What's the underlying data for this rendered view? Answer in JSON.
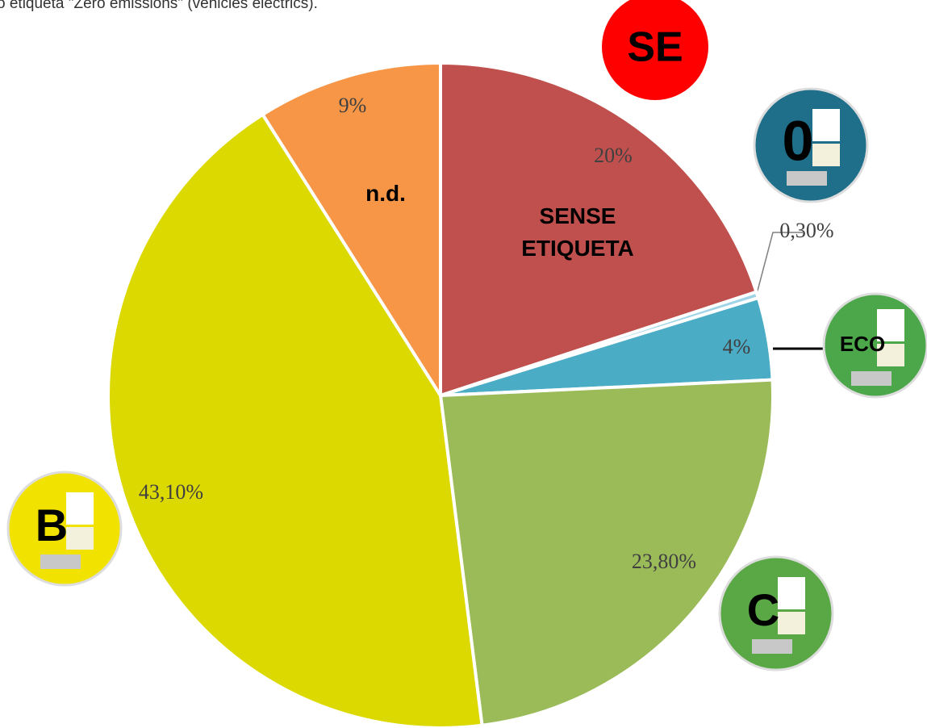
{
  "caption": "o etiqueta \"Zero emissions\" (vehicles elèctrics).",
  "chart_data": {
    "type": "pie",
    "categories": [
      "SENSE ETIQUETA",
      null,
      null,
      null,
      null,
      "n.d."
    ],
    "values": [
      20,
      0.3,
      4,
      23.8,
      43.1,
      9
    ],
    "value_labels": [
      "20%",
      "0,30%",
      "4%",
      "23,80%",
      "43,10%",
      "9%"
    ],
    "colors": [
      "#c0504d",
      "#9fd3e6",
      "#4bacc6",
      "#9bbb59",
      "#dcd900",
      "#f79646"
    ],
    "badges": [
      "SE",
      "0",
      "ECO",
      "C",
      "B"
    ]
  }
}
